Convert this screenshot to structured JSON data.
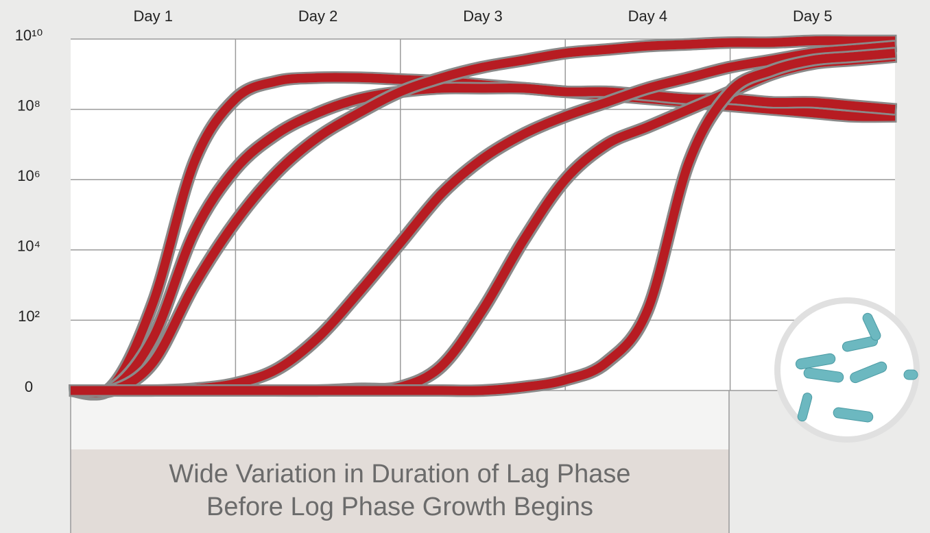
{
  "chart_data": {
    "type": "line",
    "title_lines": [
      "Wide Variation in Duration of Lag Phase",
      "Before Log Phase Growth Begins"
    ],
    "categories": [
      "Day 1",
      "Day 2",
      "Day 3",
      "Day 4",
      "Day 5"
    ],
    "x": [
      0,
      0.25,
      0.5,
      0.75,
      1,
      1.25,
      1.5,
      1.75,
      2,
      2.25,
      2.5,
      2.75,
      3,
      3.25,
      3.5,
      3.75,
      4,
      4.25,
      4.5,
      4.75,
      5
    ],
    "xlim": [
      0,
      5
    ],
    "xticks": [
      1,
      2,
      3,
      4
    ],
    "ylim": [
      0,
      10
    ],
    "yticks": [
      0,
      {
        "value": 2,
        "label": "10²"
      },
      {
        "value": 4,
        "label": "10⁴"
      },
      {
        "value": 6,
        "label": "10⁶"
      },
      {
        "value": 8,
        "label": "10⁸"
      },
      {
        "value": 10,
        "label": "10¹⁰"
      }
    ],
    "grid": true,
    "series": [
      {
        "color": "#b71c21",
        "values": [
          0,
          0.1,
          2.5,
          6.5,
          8.3,
          8.8,
          8.9,
          8.9,
          8.85,
          8.8,
          8.7,
          8.6,
          8.5,
          8.4,
          8.3,
          8.2,
          8.1,
          8.0,
          7.9,
          7.8,
          7.8
        ]
      },
      {
        "color": "#b71c21",
        "values": [
          0,
          0.05,
          1.5,
          4.5,
          6.3,
          7.3,
          7.9,
          8.3,
          8.5,
          8.6,
          8.6,
          8.6,
          8.5,
          8.5,
          8.4,
          8.3,
          8.3,
          8.2,
          8.2,
          8.1,
          8.0
        ]
      },
      {
        "color": "#b71c21",
        "values": [
          0,
          0,
          0.8,
          3,
          4.8,
          6.2,
          7.2,
          7.9,
          8.5,
          8.9,
          9.2,
          9.4,
          9.6,
          9.7,
          9.8,
          9.85,
          9.9,
          9.9,
          9.95,
          9.95,
          9.95
        ]
      },
      {
        "color": "#b71c21",
        "values": [
          0,
          0,
          0,
          0.05,
          0.2,
          0.6,
          1.5,
          2.8,
          4.2,
          5.6,
          6.6,
          7.3,
          7.8,
          8.2,
          8.6,
          8.9,
          9.2,
          9.4,
          9.6,
          9.7,
          9.8
        ]
      },
      {
        "color": "#b71c21",
        "values": [
          0,
          0,
          0,
          0,
          0,
          0,
          0,
          0.05,
          0.1,
          0.7,
          2.3,
          4.3,
          6.0,
          7.0,
          7.5,
          8.0,
          8.5,
          9.0,
          9.3,
          9.4,
          9.5
        ]
      },
      {
        "color": "#b71c21",
        "values": [
          0,
          0,
          0,
          0,
          0,
          0,
          0,
          0,
          0,
          0,
          0,
          0.1,
          0.3,
          0.8,
          2.3,
          6.5,
          8.5,
          9.1,
          9.4,
          9.5,
          9.6
        ]
      }
    ]
  }
}
